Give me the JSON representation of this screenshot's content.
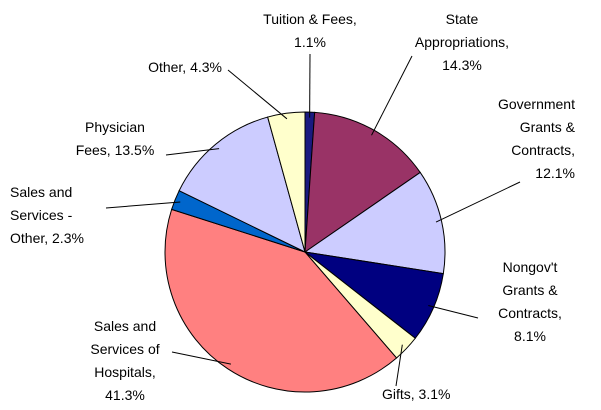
{
  "chart_data": {
    "type": "pie",
    "values": [
      1.1,
      14.3,
      12.1,
      8.1,
      3.1,
      41.3,
      2.3,
      13.5,
      4.3
    ],
    "value_labels": [
      [
        "Tuition & Fees,",
        "1.1%"
      ],
      [
        "State",
        "Appropriations,",
        "14.3%"
      ],
      [
        "Government",
        "Grants &",
        "Contracts,",
        "12.1%"
      ],
      [
        "Nongov't",
        "Grants &",
        "Contracts,",
        "8.1%"
      ],
      [
        "Gifts, 3.1%"
      ],
      [
        "Sales and",
        "Services of",
        "Hospitals,",
        "41.3%"
      ],
      [
        "Sales and",
        "Services -",
        "Other, 2.3%"
      ],
      [
        "Physician",
        "Fees, 13.5%"
      ],
      [
        "Other, 4.3%"
      ]
    ],
    "colors": [
      "#1a1a80",
      "#993366",
      "#ccccff",
      "#000080",
      "#ffffcc",
      "#ff8080",
      "#0066cc",
      "#ccccff",
      "#ffffcc"
    ]
  }
}
